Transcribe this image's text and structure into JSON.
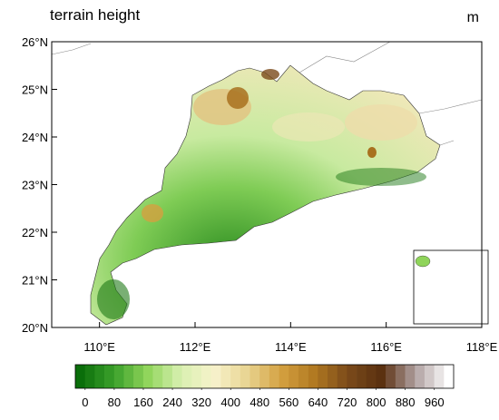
{
  "map": {
    "title": "terrain height",
    "units": "m",
    "xlim": [
      109,
      118
    ],
    "ylim": [
      20,
      26
    ],
    "xticks": [
      {
        "value": 110,
        "label": "110°E"
      },
      {
        "value": 112,
        "label": "112°E"
      },
      {
        "value": 114,
        "label": "114°E"
      },
      {
        "value": 116,
        "label": "116°E"
      },
      {
        "value": 118,
        "label": "118°E"
      }
    ],
    "yticks": [
      {
        "value": 20,
        "label": "20°N"
      },
      {
        "value": 21,
        "label": "21°N"
      },
      {
        "value": 22,
        "label": "22°N"
      },
      {
        "value": 23,
        "label": "23°N"
      },
      {
        "value": 24,
        "label": "24°N"
      },
      {
        "value": 25,
        "label": "25°N"
      },
      {
        "value": 26,
        "label": "26°N"
      }
    ]
  },
  "colorbar": {
    "lim": [
      -27,
      1013
    ],
    "ticks": [
      0,
      80,
      160,
      240,
      320,
      400,
      480,
      560,
      640,
      720,
      800,
      880,
      960
    ],
    "colors": [
      "#0a6e0a",
      "#3aa02a",
      "#8fd45a",
      "#d8f0b0",
      "#f7f2cc",
      "#e8d490",
      "#d4a040",
      "#b07820",
      "#7a4a1a",
      "#5a3010",
      "#b0a0a0",
      "#ffffff"
    ]
  }
}
